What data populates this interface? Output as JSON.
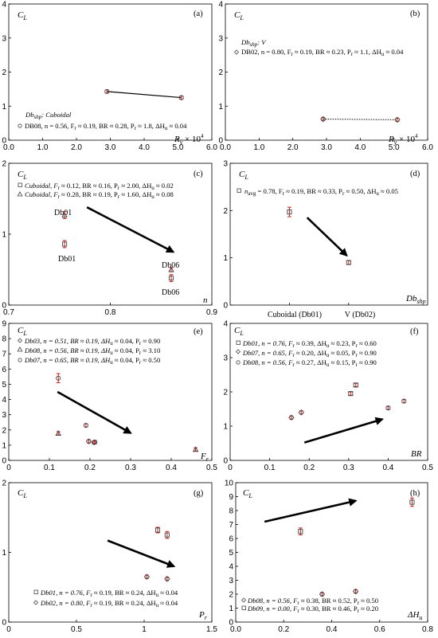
{
  "figure": "multi-panel scatter of lift coefficient",
  "colors": {
    "marker_stroke": "#444444",
    "errorbar": "#cc1f1f",
    "arrow": "#000000",
    "axis": "#000000"
  },
  "chart_data": [
    {
      "panel": "a",
      "label": "(a)",
      "type": "scatter",
      "ylabel": "C_L",
      "xlabel": "R_y × 10^4",
      "xlim": [
        0,
        6
      ],
      "ylim": [
        0,
        4
      ],
      "xticks": [
        "0.0",
        "1.0",
        "2.0",
        "3.0",
        "4.0",
        "5.0",
        "6.0"
      ],
      "yticks": [
        "0",
        "1",
        "2",
        "3",
        "4"
      ],
      "legend_title": "Db_shp: Cuboidal",
      "series": [
        {
          "name": "DB08, n = 0.56, F_r ≈ 0.19, BR ≈ 0.28, P_r ≈ 1.8, ΔH_u ≈ 0.04",
          "marker": "circle",
          "line": "solid",
          "points": [
            {
              "x": 2.9,
              "y": 1.43
            },
            {
              "x": 5.1,
              "y": 1.25
            }
          ]
        }
      ]
    },
    {
      "panel": "b",
      "label": "(b)",
      "type": "scatter",
      "ylabel": "C_L",
      "xlabel": "R_y × 10^4",
      "xlim": [
        0,
        6
      ],
      "ylim": [
        0,
        4
      ],
      "xticks": [
        "0.0",
        "1.0",
        "2.0",
        "3.0",
        "4.0",
        "5.0",
        "6.0"
      ],
      "yticks": [
        "0",
        "1",
        "2",
        "3",
        "4"
      ],
      "legend_title": "Db_shp: V",
      "series": [
        {
          "name": "DB02, n = 0.80, F_r ≈ 0.19, BR ≈ 0.23, P_r ≈ 1.1, ΔH_u ≈ 0.04",
          "marker": "diamond",
          "line": "dotted",
          "points": [
            {
              "x": 2.9,
              "y": 0.62
            },
            {
              "x": 5.1,
              "y": 0.6
            }
          ]
        }
      ]
    },
    {
      "panel": "c",
      "label": "(c)",
      "type": "scatter",
      "ylabel": "C_L",
      "xlabel": "n",
      "xlim": [
        0.7,
        0.9
      ],
      "ylim": [
        0,
        2
      ],
      "xticks": [
        "0.7",
        "0.8",
        "0.9"
      ],
      "yticks": [
        "0",
        "1",
        "2"
      ],
      "series": [
        {
          "name": "Cuboidal, F_r ≈ 0.12, BR ≈ 0.16, P_r ≈ 2.00, ΔH_u ≈ 0.02",
          "marker": "square",
          "points": [
            {
              "x": 0.755,
              "y": 0.86,
              "err": 0.05
            },
            {
              "x": 0.86,
              "y": 0.38,
              "err": 0.05
            }
          ]
        },
        {
          "name": "Cuboidal, F_r ≈ 0.28, BR ≈ 0.19, P_r ≈ 1.60, ΔH_u ≈ 0.08",
          "marker": "triangle",
          "points": [
            {
              "x": 0.755,
              "y": 1.27,
              "err": 0.05
            },
            {
              "x": 0.86,
              "y": 0.5,
              "err": 0.03
            }
          ]
        }
      ],
      "annotations": [
        "Db01",
        "Db01",
        "Db06",
        "Db06"
      ],
      "arrow": {
        "from": [
          0.777,
          1.38
        ],
        "to": [
          0.862,
          0.75
        ]
      }
    },
    {
      "panel": "d",
      "label": "(d)",
      "type": "scatter",
      "ylabel": "C_L",
      "xlabel": "Db_shp",
      "xlim": [
        0,
        2
      ],
      "ylim": [
        0,
        3
      ],
      "categories": [
        "Cuboidal (Db01)",
        "V (Db02)"
      ],
      "yticks": [
        "0",
        "1",
        "2",
        "3"
      ],
      "series": [
        {
          "name": "n_avg = 0.78, F_r ≈ 0.19, BR ≈ 0.33, P_r ≈ 0.50, ΔH_u ≈ 0.05",
          "marker": "square",
          "points": [
            {
              "x": 0.6,
              "y": 1.97,
              "err": 0.1
            },
            {
              "x": 1.2,
              "y": 0.9,
              "err": 0.04
            }
          ]
        }
      ],
      "arrow": {
        "from": [
          0.78,
          1.85
        ],
        "to": [
          1.18,
          1.05
        ]
      }
    },
    {
      "panel": "e",
      "label": "(e)",
      "type": "scatter",
      "ylabel": "C_L",
      "xlabel": "F_r",
      "xlim": [
        0,
        0.5
      ],
      "ylim": [
        0,
        9
      ],
      "xticks": [
        "0",
        "0.1",
        "0.2",
        "0.3",
        "0.4",
        "0.5"
      ],
      "yticks": [
        "0",
        "1",
        "2",
        "3",
        "4",
        "5",
        "6",
        "7",
        "8",
        "9"
      ],
      "series": [
        {
          "name": "Db03, n = 0.51, BR ≈ 0.19, ΔH_u ≈ 0.04, P_r ≈ 0.90",
          "marker": "diamond",
          "points": [
            {
              "x": 0.197,
              "y": 1.25
            },
            {
              "x": 0.21,
              "y": 1.18
            }
          ]
        },
        {
          "name": "Db08, n = 0.56, BR ≈ 0.19, ΔH_u ≈ 0.04, P_r ≈ 3.10",
          "marker": "triangle",
          "points": [
            {
              "x": 0.122,
              "y": 1.78
            },
            {
              "x": 0.46,
              "y": 0.72
            }
          ]
        },
        {
          "name": "Db07, n = 0.65, BR ≈ 0.19, ΔH_u ≈ 0.04, P_r ≈ 0.50",
          "marker": "circle",
          "points": [
            {
              "x": 0.122,
              "y": 5.4,
              "err": 0.3
            },
            {
              "x": 0.19,
              "y": 2.3
            },
            {
              "x": 0.212,
              "y": 1.2
            }
          ]
        }
      ],
      "arrow": {
        "from": [
          0.12,
          4.5
        ],
        "to": [
          0.3,
          1.8
        ]
      }
    },
    {
      "panel": "f",
      "label": "(f)",
      "type": "scatter",
      "ylabel": "C_L",
      "xlabel": "BR",
      "xlim": [
        0,
        0.5
      ],
      "ylim": [
        0,
        4
      ],
      "xticks": [
        "0",
        "0.1",
        "0.2",
        "0.3",
        "0.4",
        "0.5"
      ],
      "yticks": [
        "0",
        "1",
        "2",
        "3",
        "4"
      ],
      "series": [
        {
          "name": "Db01, n = 0.76, F_r ≈ 0.39, ΔH_u ≈ 0.23, P_r ≈ 0.60",
          "marker": "square",
          "points": [
            {
              "x": 0.305,
              "y": 1.95
            },
            {
              "x": 0.318,
              "y": 2.2
            }
          ]
        },
        {
          "name": "Db07, n = 0.65, F_r ≈ 0.20, ΔH_u ≈ 0.05, P_r ≈ 0.90",
          "marker": "diamond",
          "points": [
            {
              "x": 0.155,
              "y": 1.25
            },
            {
              "x": 0.18,
              "y": 1.4
            }
          ]
        },
        {
          "name": "Db08, n = 0.56, F_r ≈ 0.27, ΔH_u ≈ 0.15, P_r ≈ 0.90",
          "marker": "circle",
          "points": [
            {
              "x": 0.4,
              "y": 1.53
            },
            {
              "x": 0.44,
              "y": 1.73
            }
          ]
        }
      ],
      "arrow": {
        "from": [
          0.188,
          0.52
        ],
        "to": [
          0.385,
          1.2
        ]
      }
    },
    {
      "panel": "g",
      "label": "(g)",
      "type": "scatter",
      "ylabel": "C_L",
      "xlabel": "P_r",
      "xlim": [
        0,
        1.5
      ],
      "ylim": [
        0,
        2
      ],
      "xticks": [
        "0",
        "0.5",
        "1",
        "1.5"
      ],
      "yticks": [
        "0",
        "1",
        "2"
      ],
      "series": [
        {
          "name": "Db01, n = 0.76, F_r ≈ 0.19, BR ≈ 0.24, ΔH_u ≈ 0.04",
          "marker": "square",
          "points": [
            {
              "x": 1.1,
              "y": 1.32,
              "err": 0.04
            },
            {
              "x": 1.17,
              "y": 1.25,
              "err": 0.05
            }
          ]
        },
        {
          "name": "Db02, n = 0.80, F_r ≈ 0.19, BR ≈ 0.24, ΔH_u ≈ 0.04",
          "marker": "diamond",
          "points": [
            {
              "x": 1.02,
              "y": 0.65
            },
            {
              "x": 1.17,
              "y": 0.62
            }
          ]
        }
      ],
      "arrow": {
        "from": [
          0.73,
          1.17
        ],
        "to": [
          1.22,
          0.8
        ]
      }
    },
    {
      "panel": "h",
      "label": "(h)",
      "type": "scatter",
      "ylabel": "C_L",
      "xlabel": "ΔH_u",
      "xlim": [
        0,
        0.8
      ],
      "ylim": [
        0,
        10
      ],
      "xticks": [
        "0.0",
        "0.2",
        "0.4",
        "0.6",
        "0.8"
      ],
      "yticks": [
        "0",
        "1",
        "2",
        "3",
        "4",
        "5",
        "6",
        "7",
        "8",
        "9",
        "10"
      ],
      "series": [
        {
          "name": "Db08, n = 0.56, F_r ≈ 0.38, BR ≈ 0.52, P_r ≈ 0.50",
          "marker": "diamond",
          "points": [
            {
              "x": 0.36,
              "y": 2.0
            },
            {
              "x": 0.5,
              "y": 2.2
            }
          ]
        },
        {
          "name": "Db09, n = 0.00, F_r ≈ 0.30, BR ≈ 0.46, P_r ≈ 0.20",
          "marker": "square",
          "points": [
            {
              "x": 0.27,
              "y": 6.5,
              "err": 0.25
            },
            {
              "x": 0.735,
              "y": 8.6,
              "err": 0.3
            }
          ]
        }
      ],
      "arrow": {
        "from": [
          0.12,
          7.2
        ],
        "to": [
          0.5,
          8.7
        ]
      }
    }
  ],
  "text": {
    "cl": "C",
    "cl_sub": "L",
    "a": {
      "label": "(a)",
      "leg_title": "Db",
      "leg_title_sub": "shp",
      "leg_title_rest": ": Cuboidal",
      "leg1": "DB08, n = 0.56, F",
      "leg1b": "r",
      "leg1c": " ≈ 0.19, BR ≈ 0.28, P",
      "leg1d": "r",
      "leg1e": " ≈ 1.8, ΔH",
      "leg1f": "u",
      "leg1g": " ≈ 0.04",
      "xl": "R",
      "xl_sub": "y",
      "xl_rest": " × 10",
      "xl_sup": "4"
    },
    "b": {
      "label": "(b)",
      "leg_title": "Db",
      "leg_title_sub": "shp",
      "leg_title_rest": ": V",
      "leg1": "DB02, n = 0.80, F",
      "leg1b": "r",
      "leg1c": " ≈ 0.19, BR ≈ 0.23, P",
      "leg1d": "r",
      "leg1e": " ≈ 1.1, ΔH",
      "leg1f": "u",
      "leg1g": " ≈ 0.04",
      "xl": "R",
      "xl_sub": "y",
      "xl_rest": " × 10",
      "xl_sup": "4"
    },
    "c": {
      "label": "(c)",
      "leg1": "Cuboidal, F",
      "leg1b": "r",
      "leg1c": " ≈ 0.12, BR ≈ 0.16, P",
      "leg1d": "r",
      "leg1e": " ≈ 2.00, ΔH",
      "leg1f": "u",
      "leg1g": " ≈ 0.02",
      "leg2": "Cuboidal, F",
      "leg2b": "r",
      "leg2c": " ≈ 0.28, BR ≈ 0.19, P",
      "leg2d": "r",
      "leg2e": " ≈ 1.60, ΔH",
      "leg2f": "u",
      "leg2g": " ≈ 0.08",
      "ann1": "Db01",
      "ann2": "Db01",
      "ann3": "Db06",
      "ann4": "Db06",
      "xl": "n"
    },
    "d": {
      "label": "(d)",
      "leg1": "n",
      "leg1b": "avg",
      "leg1c": " = 0.78, F",
      "leg1d": "r",
      "leg1e": " ≈ 0.19, BR ≈ 0.33, P",
      "leg1f": "r",
      "leg1g": " ≈ 0.50, ΔH",
      "leg1h": "u",
      "leg1i": " ≈ 0.05",
      "cat1": "Cuboidal (Db01)",
      "cat2": "V (Db02)",
      "xl": "Db",
      "xl_sub": "shp"
    },
    "e": {
      "label": "(e)",
      "leg1": "Db03, n = 0.51, BR ≈ 0.19, ΔH",
      "leg1b": "u",
      "leg1c": " ≈ 0.04, P",
      "leg1d": "r",
      "leg1e": " ≈ 0.90",
      "leg2": "Db08, n = 0.56, BR ≈ 0.19, ΔH",
      "leg2b": "u",
      "leg2c": " ≈ 0.04, P",
      "leg2d": "r",
      "leg2e": " ≈ 3.10",
      "leg3": "Db07, n = 0.65, BR ≈ 0.19, ΔH",
      "leg3b": "u",
      "leg3c": " ≈ 0.04, P",
      "leg3d": "r",
      "leg3e": " ≈ 0.50",
      "xl": "F",
      "xl_sub": "r"
    },
    "f": {
      "label": "(f)",
      "leg1": "Db01, n = 0.76, F",
      "leg1b": "r",
      "leg1c": " ≈ 0.39, ΔH",
      "leg1d": "u",
      "leg1e": " ≈ 0.23, P",
      "leg1f": "r",
      "leg1g": " ≈ 0.60",
      "leg2": "Db07, n = 0.65, F",
      "leg2b": "r",
      "leg2c": " ≈ 0.20, ΔH",
      "leg2d": "u",
      "leg2e": " ≈ 0.05, P",
      "leg2f": "r",
      "leg2g": " ≈ 0.90",
      "leg3": "Db08, n = 0.56, F",
      "leg3b": "r",
      "leg3c": " ≈ 0.27, ΔH",
      "leg3d": "u",
      "leg3e": " ≈ 0.15, P",
      "leg3f": "r",
      "leg3g": " ≈ 0.90",
      "xl": "BR"
    },
    "g": {
      "label": "(g)",
      "leg1": "Db01, n = 0.76, F",
      "leg1b": "r",
      "leg1c": " ≈ 0.19, BR ≈ 0.24, ΔH",
      "leg1d": "u",
      "leg1e": " ≈ 0.04",
      "leg2": "Db02, n = 0.80, F",
      "leg2b": "r",
      "leg2c": " ≈ 0.19, BR ≈ 0.24, ΔH",
      "leg2d": "u",
      "leg2e": " ≈ 0.04",
      "xl": "P",
      "xl_sub": "r"
    },
    "h": {
      "label": "(h)",
      "leg1": "Db08, n = 0.56, F",
      "leg1b": "r",
      "leg1c": " ≈ 0.38, BR ≈ 0.52, P",
      "leg1d": "r",
      "leg1e": " ≈ 0.50",
      "leg2": "Db09, n = 0.00, F",
      "leg2b": "r",
      "leg2c": " ≈ 0.30, BR ≈ 0.46, P",
      "leg2d": "r",
      "leg2e": " ≈ 0.20",
      "xl": "ΔH",
      "xl_sub": "u"
    }
  }
}
